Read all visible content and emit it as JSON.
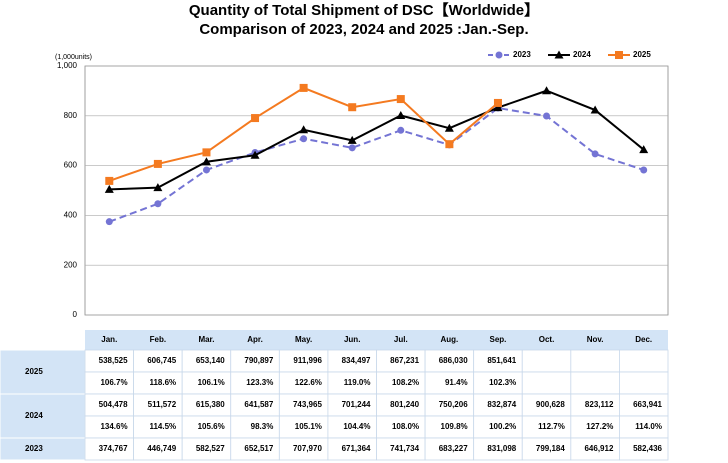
{
  "chart_data": {
    "type": "line",
    "title": "Quantity of Total Shipment of DSC【Worldwide】",
    "subtitle": "Comparison of 2023, 2024 and 2025 :Jan.-Sep.",
    "y_label": "(1,000units)",
    "categories": [
      "Jan.",
      "Feb.",
      "Mar.",
      "Apr.",
      "May.",
      "Jun.",
      "Jul.",
      "Aug.",
      "Sep.",
      "Oct.",
      "Nov.",
      "Dec."
    ],
    "ylim": [
      0,
      1000
    ],
    "yticks": [
      0,
      200,
      400,
      600,
      800,
      {
        "value": 1000,
        "label": "1,000"
      }
    ],
    "grid": true,
    "legend": "top-right",
    "series": [
      {
        "name": "2023",
        "color": "#7474d4",
        "dashed": true,
        "marker": "circle",
        "values": [
          374.767,
          446.749,
          582.527,
          652.517,
          707.97,
          671.364,
          741.734,
          683.227,
          831.098,
          799.184,
          646.912,
          582.436
        ],
        "value_labels": [
          "374,767",
          "446,749",
          "582,527",
          "652,517",
          "707,970",
          "671,364",
          "741,734",
          "683,227",
          "831,098",
          "799,184",
          "646,912",
          "582,436"
        ]
      },
      {
        "name": "2024",
        "color": "#000000",
        "dashed": false,
        "marker": "triangle",
        "values": [
          504.478,
          511.572,
          615.38,
          641.587,
          743.965,
          701.244,
          801.24,
          750.206,
          832.874,
          900.628,
          823.112,
          663.941
        ],
        "value_labels": [
          "504,478",
          "511,572",
          "615,380",
          "641,587",
          "743,965",
          "701,244",
          "801,240",
          "750,206",
          "832,874",
          "900,628",
          "823,112",
          "663,941"
        ],
        "growth": [
          "134.6%",
          "114.5%",
          "105.6%",
          "98.3%",
          "105.1%",
          "104.4%",
          "108.0%",
          "109.8%",
          "100.2%",
          "112.7%",
          "127.2%",
          "114.0%"
        ]
      },
      {
        "name": "2025",
        "color": "#f47a20",
        "dashed": false,
        "marker": "square",
        "values": [
          538.525,
          606.745,
          653.14,
          790.897,
          911.996,
          834.497,
          867.231,
          686.03,
          851.641,
          null,
          null,
          null
        ],
        "value_labels": [
          "538,525",
          "606,745",
          "653,140",
          "790,897",
          "911,996",
          "834,497",
          "867,231",
          "686,030",
          "851,641",
          null,
          null,
          null
        ],
        "growth": [
          "106.7%",
          "118.6%",
          "106.1%",
          "123.3%",
          "122.6%",
          "119.0%",
          "108.2%",
          "91.4%",
          "102.3%",
          null,
          null,
          null
        ]
      }
    ]
  }
}
